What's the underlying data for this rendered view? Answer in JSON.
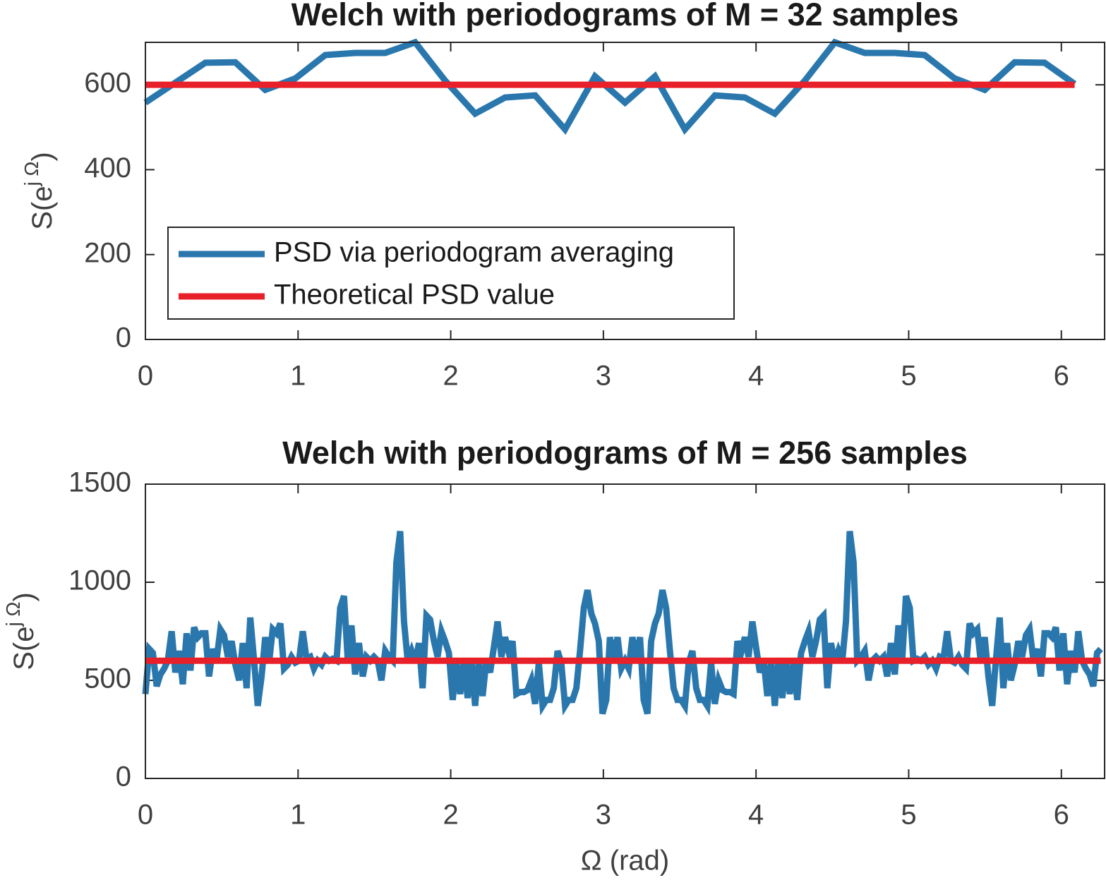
{
  "chart_data": [
    {
      "type": "line",
      "title": "Welch with periodograms of M = 32 samples",
      "ylabel": [
        "S(e",
        "j Ω",
        ")"
      ],
      "x": [
        0,
        0.196,
        0.393,
        0.589,
        0.785,
        0.982,
        1.178,
        1.374,
        1.571,
        1.767,
        1.963,
        2.16,
        2.356,
        2.553,
        2.749,
        2.945,
        3.142,
        3.338,
        3.534,
        3.731,
        3.927,
        4.123,
        4.32,
        4.516,
        4.712,
        4.909,
        5.105,
        5.301,
        5.498,
        5.694,
        5.89,
        6.087
      ],
      "series": [
        {
          "name": "PSD via periodogram averaging",
          "color": "#2a77ad",
          "values": [
            558,
            605,
            652,
            653,
            588,
            615,
            670,
            675,
            675,
            700,
            610,
            532,
            570,
            575,
            495,
            620,
            558,
            620,
            495,
            575,
            570,
            532,
            610,
            700,
            675,
            675,
            670,
            615,
            588,
            653,
            652,
            602
          ]
        },
        {
          "name": "Theoretical PSD value",
          "color": "#e8202a",
          "x": [
            0,
            6.087
          ],
          "values": [
            600,
            600
          ]
        }
      ],
      "xlim": [
        0,
        6.2832
      ],
      "ylim": [
        0,
        700
      ],
      "xticks": [
        0,
        1,
        2,
        3,
        4,
        5,
        6
      ],
      "yticks": [
        0,
        200,
        400,
        600
      ],
      "legend": "lower left"
    },
    {
      "type": "line",
      "title": "Welch with periodograms of M = 256 samples",
      "ylabel": [
        "S(e",
        "j Ω",
        ")"
      ],
      "xlabel": "Ω (rad)",
      "x": [
        0,
        0.025,
        0.049,
        0.074,
        0.098,
        0.123,
        0.147,
        0.172,
        0.196,
        0.221,
        0.245,
        0.27,
        0.295,
        0.319,
        0.344,
        0.368,
        0.393,
        0.417,
        0.442,
        0.466,
        0.491,
        0.515,
        0.54,
        0.565,
        0.589,
        0.614,
        0.638,
        0.663,
        0.687,
        0.712,
        0.736,
        0.761,
        0.785,
        0.81,
        0.834,
        0.859,
        0.884,
        0.908,
        0.933,
        0.957,
        0.982,
        1.006,
        1.031,
        1.055,
        1.08,
        1.104,
        1.129,
        1.154,
        1.178,
        1.203,
        1.227,
        1.252,
        1.276,
        1.301,
        1.325,
        1.35,
        1.374,
        1.399,
        1.424,
        1.448,
        1.473,
        1.497,
        1.522,
        1.546,
        1.571,
        1.595,
        1.62,
        1.644,
        1.669,
        1.694,
        1.718,
        1.743,
        1.767,
        1.792,
        1.816,
        1.841,
        1.865,
        1.89,
        1.914,
        1.939,
        1.963,
        1.988,
        2.013,
        2.037,
        2.062,
        2.086,
        2.111,
        2.135,
        2.16,
        2.184,
        2.209,
        2.233,
        2.258,
        2.283,
        2.307,
        2.332,
        2.356,
        2.381,
        2.405,
        2.43,
        2.454,
        2.479,
        2.503,
        2.528,
        2.553,
        2.577,
        2.602,
        2.626,
        2.651,
        2.675,
        2.7,
        2.724,
        2.749,
        2.773,
        2.798,
        2.823,
        2.847,
        2.872,
        2.896,
        2.921,
        2.945,
        2.97,
        2.994,
        3.019,
        3.043,
        3.068,
        3.093,
        3.117,
        3.142,
        3.166,
        3.19,
        3.215,
        3.24,
        3.264,
        3.289,
        3.313,
        3.338,
        3.362,
        3.387,
        3.411,
        3.436,
        3.46,
        3.485,
        3.51,
        3.534,
        3.559,
        3.583,
        3.608,
        3.632,
        3.657,
        3.681,
        3.706,
        3.73,
        3.755,
        3.78,
        3.804,
        3.829,
        3.853,
        3.878,
        3.902,
        3.927,
        3.951,
        3.976,
        4.0,
        4.025,
        4.05,
        4.074,
        4.099,
        4.123,
        4.148,
        4.172,
        4.197,
        4.221,
        4.246,
        4.27,
        4.295,
        4.32,
        4.344,
        4.369,
        4.393,
        4.418,
        4.442,
        4.467,
        4.491,
        4.516,
        4.54,
        4.565,
        4.589,
        4.614,
        4.639,
        4.663,
        4.688,
        4.712,
        4.737,
        4.761,
        4.786,
        4.81,
        4.835,
        4.859,
        4.884,
        4.909,
        4.933,
        4.958,
        4.982,
        5.007,
        5.031,
        5.056,
        5.08,
        5.105,
        5.129,
        5.154,
        5.179,
        5.203,
        5.228,
        5.252,
        5.277,
        5.301,
        5.326,
        5.35,
        5.375,
        5.399,
        5.424,
        5.449,
        5.473,
        5.498,
        5.522,
        5.547,
        5.571,
        5.596,
        5.62,
        5.645,
        5.669,
        5.694,
        5.718,
        5.743,
        5.768,
        5.792,
        5.817,
        5.841,
        5.866,
        5.89,
        5.915,
        5.939,
        5.964,
        5.988,
        6.013,
        6.038,
        6.062,
        6.087,
        6.111,
        6.136,
        6.16,
        6.185,
        6.209,
        6.234,
        6.258
      ],
      "series": [
        {
          "color": "#2a77ad",
          "values": [
            430,
            660,
            640,
            470,
            530,
            560,
            600,
            750,
            540,
            650,
            480,
            740,
            550,
            770,
            720,
            740,
            740,
            520,
            660,
            600,
            760,
            730,
            620,
            700,
            580,
            500,
            690,
            460,
            820,
            600,
            370,
            520,
            720,
            590,
            760,
            740,
            790,
            560,
            580,
            620,
            590,
            600,
            750,
            610,
            620,
            560,
            600,
            580,
            620,
            600,
            610,
            600,
            870,
            930,
            610,
            780,
            530,
            690,
            520,
            620,
            600,
            620,
            600,
            500,
            650,
            620,
            600,
            1100,
            1260,
            800,
            600,
            650,
            590,
            690,
            460,
            830,
            810,
            700,
            620,
            750,
            700,
            640,
            400,
            590,
            430,
            610,
            410,
            610,
            370,
            600,
            420,
            600,
            540,
            670,
            800,
            620,
            720,
            640,
            700,
            430,
            440,
            440,
            450,
            500,
            380,
            590,
            370,
            400,
            400,
            460,
            650,
            590,
            370,
            400,
            400,
            460,
            650,
            870,
            960,
            840,
            790,
            700,
            330,
            400,
            720,
            610,
            720,
            560,
            600,
            560,
            720,
            610,
            720,
            400,
            330,
            700,
            790,
            840,
            960,
            870,
            650,
            460,
            400,
            400,
            370,
            590,
            650,
            460,
            400,
            400,
            370,
            590,
            380,
            500,
            450,
            440,
            440,
            430,
            700,
            640,
            720,
            620,
            800,
            670,
            540,
            600,
            420,
            600,
            370,
            610,
            410,
            610,
            430,
            590,
            400,
            640,
            700,
            750,
            620,
            700,
            810,
            830,
            460,
            690,
            590,
            650,
            600,
            800,
            1260,
            1100,
            600,
            620,
            650,
            500,
            600,
            620,
            600,
            620,
            520,
            690,
            530,
            780,
            610,
            930,
            870,
            600,
            610,
            600,
            620,
            580,
            600,
            560,
            620,
            610,
            750,
            600,
            590,
            620,
            580,
            560,
            790,
            740,
            760,
            590,
            720,
            520,
            370,
            600,
            820,
            460,
            690,
            500,
            580,
            700,
            620,
            730,
            760,
            600,
            660,
            520,
            740,
            740,
            720,
            770,
            550,
            740,
            480,
            650,
            540,
            750,
            600,
            560,
            530,
            470,
            640,
            660
          ]
        },
        {
          "color": "#e8202a",
          "x": [
            0,
            6.258
          ],
          "values": [
            600,
            600
          ]
        }
      ],
      "xlim": [
        0,
        6.2832
      ],
      "ylim": [
        0,
        1500
      ],
      "xticks": [
        0,
        1,
        2,
        3,
        4,
        5,
        6
      ],
      "yticks": [
        0,
        500,
        1000,
        1500
      ]
    }
  ]
}
